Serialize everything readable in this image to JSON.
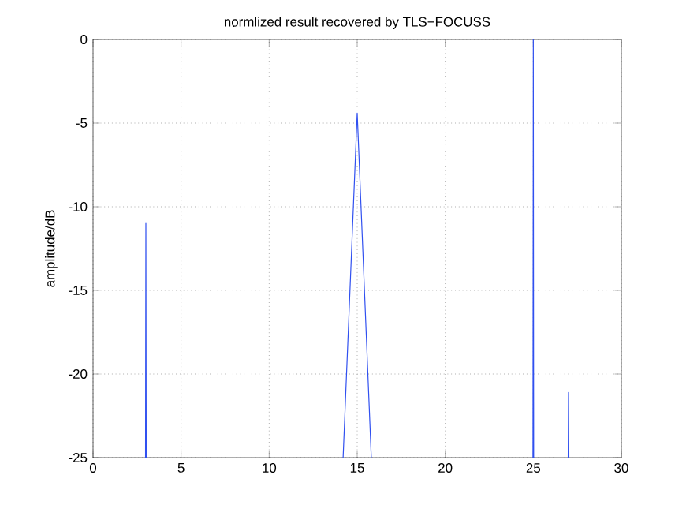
{
  "chart_data": {
    "type": "line",
    "title": "normlized result recovered by TLS−FOCUSS",
    "ylabel": "amplitude/dB",
    "x": [
      2.98,
      3,
      3.02,
      null,
      14.2,
      15,
      15.8,
      null,
      24.98,
      25,
      25.02,
      null,
      26.98,
      27,
      27.02
    ],
    "series": [
      {
        "color": "#3050f0",
        "values": [
          -25,
          -11,
          -25,
          null,
          -25,
          -4.4,
          -25,
          null,
          -25,
          0,
          -25,
          null,
          -25,
          -21.1,
          -25
        ]
      }
    ],
    "xlim": [
      0,
      30
    ],
    "ylim": [
      -25,
      0
    ],
    "xticks": [
      0,
      5,
      10,
      15,
      20,
      25,
      30
    ],
    "yticks": [
      -25,
      -20,
      -15,
      -10,
      -5,
      0
    ],
    "grid": true,
    "line_style": "solid",
    "marker": "none"
  }
}
